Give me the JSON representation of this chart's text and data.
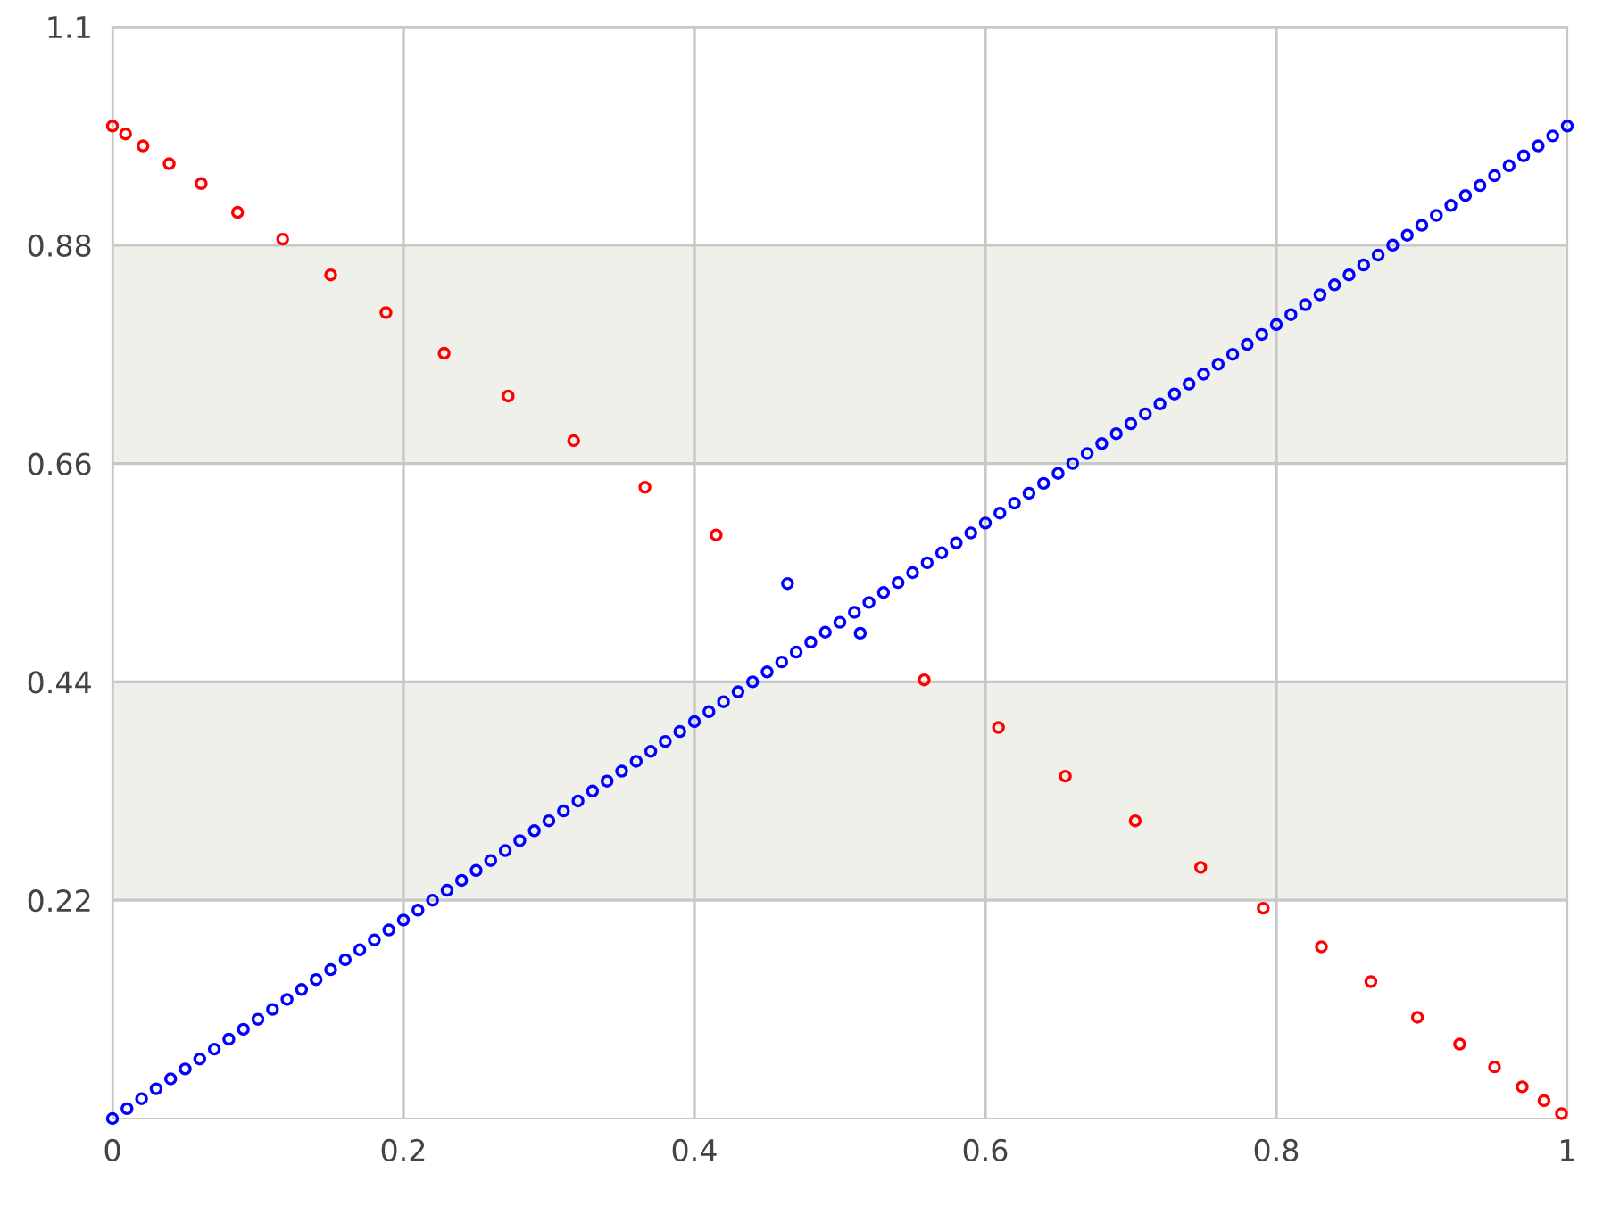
{
  "chart_data": {
    "type": "scatter",
    "series": [
      {
        "color": "#0000ff",
        "x": [
          0,
          0.01,
          0.02,
          0.03,
          0.04,
          0.05,
          0.06,
          0.07,
          0.08,
          0.09,
          0.1,
          0.11,
          0.12,
          0.13,
          0.14,
          0.15,
          0.16,
          0.17,
          0.18,
          0.19,
          0.2,
          0.21,
          0.22,
          0.23,
          0.24,
          0.25,
          0.26,
          0.27,
          0.28,
          0.29,
          0.3,
          0.31,
          0.32,
          0.33,
          0.34,
          0.35,
          0.36,
          0.37,
          0.38,
          0.39,
          0.4,
          0.41,
          0.42,
          0.43,
          0.44,
          0.45,
          0.46,
          0.47,
          0.48,
          0.49,
          0.5,
          0.51,
          0.52,
          0.53,
          0.54,
          0.55,
          0.56,
          0.57,
          0.58,
          0.59,
          0.6,
          0.61,
          0.62,
          0.63,
          0.64,
          0.65,
          0.66,
          0.67,
          0.68,
          0.69,
          0.7,
          0.71,
          0.72,
          0.73,
          0.74,
          0.75,
          0.76,
          0.77,
          0.78,
          0.79,
          0.8,
          0.81,
          0.82,
          0.83,
          0.84,
          0.85,
          0.86,
          0.87,
          0.88,
          0.89,
          0.9,
          0.91,
          0.92,
          0.93,
          0.94,
          0.95,
          0.96,
          0.97,
          0.98,
          0.99,
          1
        ],
        "values": [
          0,
          0.01,
          0.02,
          0.03,
          0.04,
          0.05,
          0.06,
          0.07,
          0.08,
          0.09,
          0.1,
          0.11,
          0.12,
          0.13,
          0.14,
          0.15,
          0.16,
          0.17,
          0.18,
          0.19,
          0.2,
          0.21,
          0.22,
          0.23,
          0.24,
          0.25,
          0.26,
          0.27,
          0.28,
          0.29,
          0.3,
          0.31,
          0.32,
          0.33,
          0.34,
          0.35,
          0.36,
          0.37,
          0.38,
          0.39,
          0.4,
          0.41,
          0.42,
          0.43,
          0.44,
          0.45,
          0.46,
          0.47,
          0.48,
          0.49,
          0.5,
          0.51,
          0.52,
          0.53,
          0.54,
          0.55,
          0.56,
          0.57,
          0.58,
          0.59,
          0.6,
          0.61,
          0.62,
          0.63,
          0.64,
          0.65,
          0.66,
          0.67,
          0.68,
          0.69,
          0.7,
          0.71,
          0.72,
          0.73,
          0.74,
          0.75,
          0.76,
          0.77,
          0.78,
          0.79,
          0.8,
          0.81,
          0.82,
          0.83,
          0.84,
          0.85,
          0.86,
          0.87,
          0.88,
          0.89,
          0.9,
          0.91,
          0.92,
          0.93,
          0.94,
          0.95,
          0.96,
          0.97,
          0.98,
          0.99,
          1
        ]
      },
      {
        "x": [
          0,
          0.009,
          0.021,
          0.039,
          0.061,
          0.086,
          0.117,
          0.15,
          0.188,
          0.228,
          0.272,
          0.317,
          0.366,
          0.415,
          0.464,
          0.514,
          0.558,
          0.609,
          0.655,
          0.703,
          0.748,
          0.791,
          0.831,
          0.865,
          0.897,
          0.926,
          0.95,
          0.969,
          0.984,
          0.996
        ],
        "values": [
          1,
          0.992,
          0.98,
          0.962,
          0.942,
          0.913,
          0.886,
          0.85,
          0.812,
          0.771,
          0.728,
          0.683,
          0.636,
          0.588,
          0.539,
          0.489,
          0.442,
          0.394,
          0.345,
          0.3,
          0.253,
          0.212,
          0.173,
          0.138,
          0.102,
          0.075,
          0.052,
          0.032,
          0.018,
          0.005
        ],
        "colors": [
          "#ff0000",
          "#ff0000",
          "#ff0000",
          "#ff0000",
          "#ff0000",
          "#ff0000",
          "#ff0000",
          "#ff0000",
          "#ff0000",
          "#ff0000",
          "#ff0000",
          "#ff0000",
          "#ff0000",
          "#ff0000",
          "#0000ff",
          "#0000ff",
          "#ff0000",
          "#ff0000",
          "#ff0000",
          "#ff0000",
          "#ff0000",
          "#ff0000",
          "#ff0000",
          "#ff0000",
          "#ff0000",
          "#ff0000",
          "#ff0000",
          "#ff0000",
          "#ff0000",
          "#ff0000"
        ]
      }
    ],
    "xlim": [
      0,
      1
    ],
    "xticks": [
      0,
      0.2,
      0.4,
      0.6,
      0.8,
      1
    ],
    "ylim": [
      0,
      1.1
    ],
    "yticks": [
      0.22,
      0.44,
      0.66,
      0.88,
      1.1
    ],
    "bands": [
      {
        "axis": "y",
        "from": 0.22,
        "to": 0.44,
        "color": "#f0f0ea"
      },
      {
        "axis": "y",
        "from": 0.66,
        "to": 0.88,
        "color": "#f0f0ea"
      }
    ],
    "grid": true,
    "marker": "circle",
    "legend": false
  }
}
